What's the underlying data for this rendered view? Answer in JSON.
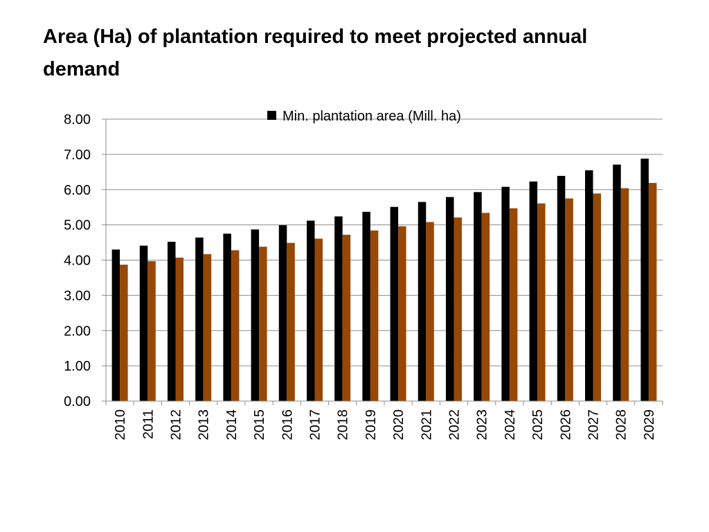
{
  "slide": {
    "title": "Area (Ha) of plantation required to meet projected annual demand"
  },
  "chart_data": {
    "type": "bar",
    "title": "",
    "xlabel": "",
    "ylabel": "",
    "categories": [
      "2010",
      "2011",
      "2012",
      "2013",
      "2014",
      "2015",
      "2016",
      "2017",
      "2018",
      "2019",
      "2020",
      "2021",
      "2022",
      "2023",
      "2024",
      "2025",
      "2026",
      "2027",
      "2028",
      "2029"
    ],
    "series": [
      {
        "name": "Min. plantation area (Mill. ha)",
        "color": "#000000",
        "values": [
          4.3,
          4.41,
          4.52,
          4.64,
          4.75,
          4.87,
          4.99,
          5.12,
          5.24,
          5.37,
          5.51,
          5.65,
          5.79,
          5.93,
          6.08,
          6.23,
          6.39,
          6.55,
          6.71,
          6.88
        ]
      },
      {
        "color": "#974806",
        "values": [
          3.87,
          3.97,
          4.07,
          4.17,
          4.28,
          4.38,
          4.49,
          4.61,
          4.72,
          4.84,
          4.96,
          5.08,
          5.21,
          5.34,
          5.47,
          5.61,
          5.75,
          5.89,
          6.04,
          6.19
        ]
      }
    ],
    "ylim": [
      0,
      8
    ],
    "yticks": [
      0,
      1,
      2,
      3,
      4,
      5,
      6,
      7,
      8
    ],
    "ytick_labels": [
      "0.00",
      "1.00",
      "2.00",
      "3.00",
      "4.00",
      "5.00",
      "6.00",
      "7.00",
      "8.00"
    ],
    "grid": true,
    "legend_position": "top"
  }
}
